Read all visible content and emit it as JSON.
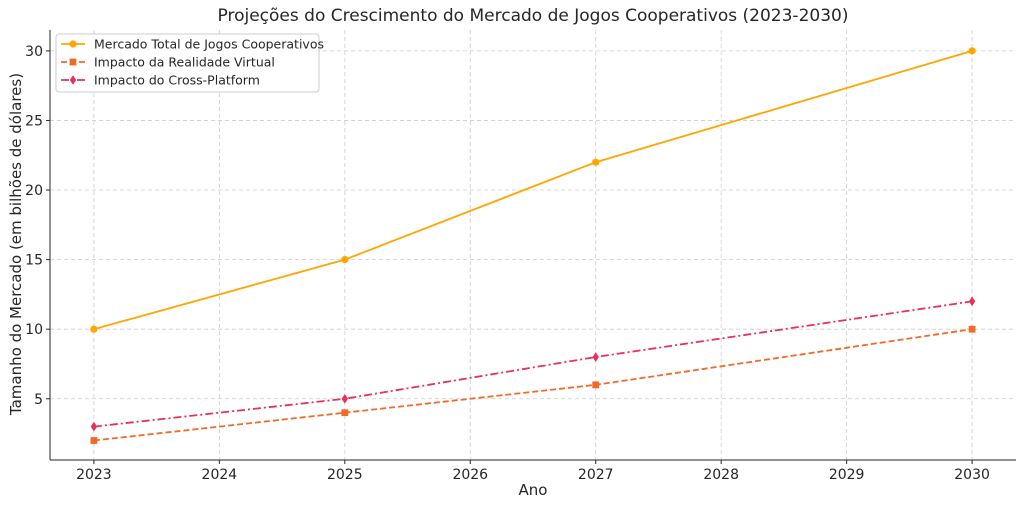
{
  "chart_data": {
    "type": "line",
    "title": "Projeções do Crescimento do Mercado de Jogos Cooperativos (2023-2030)",
    "xlabel": "Ano",
    "ylabel": "Tamanho do Mercado (em bilhões de dólares)",
    "xlim": [
      2022.65,
      2030.35
    ],
    "ylim": [
      0.6,
      31.5
    ],
    "xticks": [
      2023,
      2024,
      2025,
      2026,
      2027,
      2028,
      2029,
      2030
    ],
    "yticks": [
      5,
      10,
      15,
      20,
      25,
      30
    ],
    "grid": true,
    "legend_position": "top-left",
    "series": [
      {
        "name": "Mercado Total de Jogos Cooperativos",
        "x": [
          2023,
          2025,
          2027,
          2030
        ],
        "values": [
          10,
          15,
          22,
          30
        ],
        "color": "#ffa500",
        "linestyle": "solid",
        "marker": "circle"
      },
      {
        "name": "Impacto da Realidade Virtual",
        "x": [
          2023,
          2025,
          2027,
          2030
        ],
        "values": [
          2,
          4,
          6,
          10
        ],
        "color": "#f06a28",
        "linestyle": "dashed",
        "marker": "square"
      },
      {
        "name": "Impacto do Cross-Platform",
        "x": [
          2023,
          2025,
          2027,
          2030
        ],
        "values": [
          3,
          5,
          8,
          12
        ],
        "color": "#e8305a",
        "linestyle": "dashdot",
        "marker": "diamond"
      }
    ]
  }
}
